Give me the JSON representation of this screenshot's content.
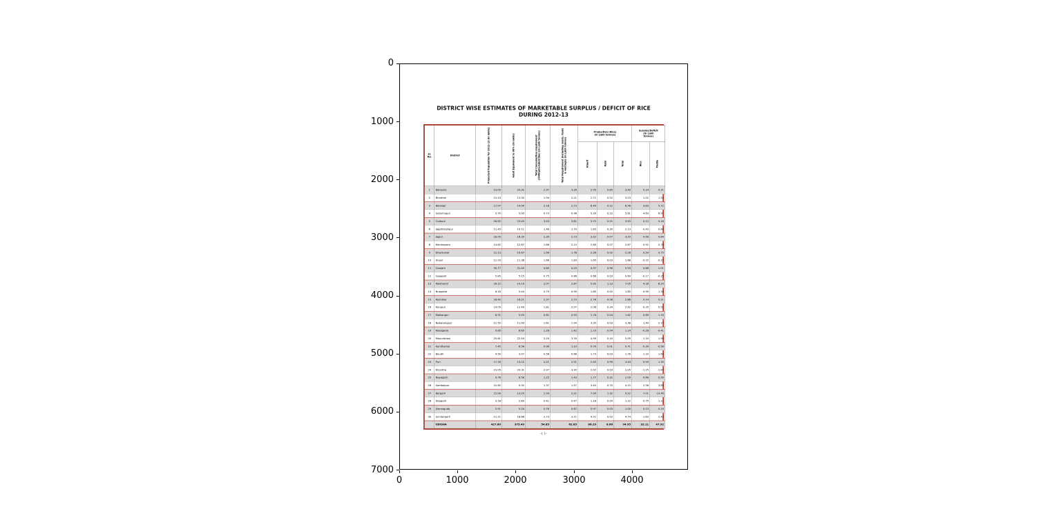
{
  "figure": {
    "y_ticks": [
      "0",
      "1000",
      "2000",
      "3000",
      "4000",
      "5000",
      "6000",
      "7000"
    ],
    "x_ticks": [
      "0",
      "1000",
      "2000",
      "3000",
      "4000"
    ]
  },
  "document": {
    "title_line1": "DISTRICT WISE ESTIMATES OF MARKETABLE SURPLUS / DEFICIT OF RICE",
    "title_line2": "DURING 2012-13",
    "footer_mark": "-( )-",
    "border_color": "#c0392b"
  },
  "table": {
    "headers": {
      "sl_no": "Sl.\nNo.",
      "district": "District",
      "projected_population": "Projected Population for 2012-13 (in lakhs)",
      "adult_equivalent": "Adult Equivalent to 88% (in lakhs)",
      "total_consumption": "Total Consumption requirement (@400gms/adult/day) (In Lakh tonnes)",
      "total_requirement": "Total Requirement (including seeds, feeds & wastage) (In Lakh tonnes)",
      "production_group": "Production (Rice)\n(In Lakh tonnes)",
      "kharif": "Kharif",
      "rabi": "Rabi",
      "total": "Total",
      "surplus_group": "Surplus/Deficit\n(In Lakh\ntonnes)",
      "rice": "Rice",
      "paddy": "Paddy"
    },
    "rows": [
      [
        "1",
        "Balasore",
        "23.05",
        "20.31",
        "2.97",
        "3.26",
        "2.55",
        "0.85",
        "3.40",
        "0.14",
        "0.21"
      ],
      [
        "2",
        "Bhadrak",
        "15.24",
        "13.30",
        "1.94",
        "2.21",
        "2.71",
        "0.52",
        "3.23",
        "1.02",
        "1.52"
      ],
      [
        "3",
        "Balangir",
        "17.07",
        "14.90",
        "2.18",
        "2.73",
        "6.44",
        "0.12",
        "6.56",
        "3.83",
        "5.72"
      ],
      [
        "4",
        "Subarnapur",
        "5.70",
        "5.00",
        "0.73",
        "0.98",
        "5.39",
        "0.22",
        "5.61",
        "4.63",
        "6.91"
      ],
      [
        "5",
        "Cuttack",
        "26.62",
        "23.45",
        "3.43",
        "3.81",
        "3.72",
        "0.21",
        "3.93",
        "0.12",
        "0.18"
      ],
      [
        "6",
        "Jagatsinghpur",
        "11.45",
        "10.11",
        "1.48",
        "1.70",
        "1.83",
        "0.30",
        "2.13",
        "0.43",
        "0.64"
      ],
      [
        "7",
        "Jajpur",
        "18.55",
        "16.35",
        "2.39",
        "2.73",
        "3.22",
        "0.07",
        "3.29",
        "0.56",
        "0.84"
      ],
      [
        "8",
        "Kendrapara",
        "14.62",
        "12.87",
        "1.88",
        "2.15",
        "2.60",
        "0.07",
        "2.67",
        "0.52",
        "0.78"
      ],
      [
        "9",
        "Dhenkanal",
        "12.13",
        "10.67",
        "1.56",
        "1.78",
        "2.26",
        "0.02",
        "2.28",
        "0.50",
        "0.75"
      ],
      [
        "10",
        "Angul",
        "12.93",
        "11.38",
        "1.66",
        "1.83",
        "1.65",
        "0.03",
        "1.68",
        "-0.15",
        "-0.22"
      ],
      [
        "11",
        "Ganjam",
        "35.77",
        "31.45",
        "4.60",
        "5.25",
        "4.97",
        "0.96",
        "5.93",
        "0.68",
        "1.01"
      ],
      [
        "12",
        "Gajapati",
        "5.85",
        "5.15",
        "0.75",
        "0.86",
        "0.66",
        "0.03",
        "0.69",
        "-0.17",
        "-0.25"
      ],
      [
        "13",
        "Kalahandi",
        "16.12",
        "14.19",
        "2.07",
        "2.87",
        "5.92",
        "1.13",
        "7.05",
        "4.18",
        "6.24"
      ],
      [
        "14",
        "Nuapada",
        "6.18",
        "5.44",
        "0.79",
        "0.90",
        "1.80",
        "0.00",
        "1.80",
        "0.90",
        "1.34"
      ],
      [
        "15",
        "Keonjhar",
        "18.42",
        "16.21",
        "2.37",
        "2.72",
        "2.78",
        "0.08",
        "2.86",
        "0.14",
        "0.21"
      ],
      [
        "16",
        "Koraput",
        "14.05",
        "12.40",
        "1.81",
        "2.07",
        "2.08",
        "0.34",
        "2.42",
        "0.35",
        "0.52"
      ],
      [
        "17",
        "Malkangiri",
        "6.31",
        "5.55",
        "0.81",
        "0.93",
        "1.78",
        "0.04",
        "1.82",
        "0.89",
        "1.33"
      ],
      [
        "18",
        "Nabarangpur",
        "12.50",
        "11.00",
        "1.61",
        "1.94",
        "3.35",
        "0.03",
        "3.38",
        "1.44",
        "2.15"
      ],
      [
        "19",
        "Rayagada",
        "9.85",
        "8.65",
        "1.26",
        "1.42",
        "1.10",
        "0.04",
        "1.14",
        "-0.28",
        "-0.41"
      ],
      [
        "20",
        "Mayurbhanj",
        "25.61",
        "22.54",
        "3.29",
        "3.76",
        "4.99",
        "0.10",
        "5.09",
        "1.33",
        "1.99"
      ],
      [
        "21",
        "Kandhamal",
        "7.45",
        "6.56",
        "0.96",
        "1.10",
        "0.70",
        "0.01",
        "0.71",
        "-0.39",
        "-0.58"
      ],
      [
        "22",
        "Boudh",
        "4.50",
        "3.97",
        "0.58",
        "0.66",
        "1.73",
        "0.03",
        "1.76",
        "1.10",
        "1.64"
      ],
      [
        "23",
        "Puri",
        "17.18",
        "15.12",
        "2.21",
        "2.51",
        "2.45",
        "0.99",
        "3.44",
        "0.93",
        "1.39"
      ],
      [
        "24",
        "Khordha",
        "23.05",
        "20.31",
        "2.97",
        "3.30",
        "2.02",
        "0.03",
        "2.05",
        "-1.25",
        "-1.87"
      ],
      [
        "25",
        "Nayagarh",
        "9.76",
        "8.58",
        "1.25",
        "1.43",
        "1.77",
        "0.32",
        "2.09",
        "0.66",
        "0.99"
      ],
      [
        "26",
        "Sambalpur",
        "10.62",
        "9.35",
        "1.37",
        "1.57",
        "3.45",
        "0.70",
        "4.15",
        "2.58",
        "3.85"
      ],
      [
        "27",
        "Bargarh",
        "15.00",
        "13.20",
        "1.93",
        "2.21",
        "7.90",
        "1.32",
        "9.22",
        "7.01",
        "10.46"
      ],
      [
        "28",
        "Deogarh",
        "3.18",
        "2.80",
        "0.41",
        "0.47",
        "1.18",
        "0.04",
        "1.22",
        "0.75",
        "1.12"
      ],
      [
        "29",
        "Jharsuguda",
        "5.91",
        "5.20",
        "0.76",
        "0.87",
        "0.97",
        "0.03",
        "1.00",
        "0.13",
        "0.19"
      ],
      [
        "30",
        "Sundergarh",
        "21.21",
        "18.66",
        "2.73",
        "3.11",
        "4.72",
        "0.02",
        "4.74",
        "1.63",
        "2.43"
      ]
    ],
    "total_row": [
      "",
      "ODISHA",
      "427.80",
      "375.49",
      "54.85",
      "62.85",
      "86.29",
      "8.66",
      "94.95",
      "32.11",
      "47.92"
    ]
  }
}
